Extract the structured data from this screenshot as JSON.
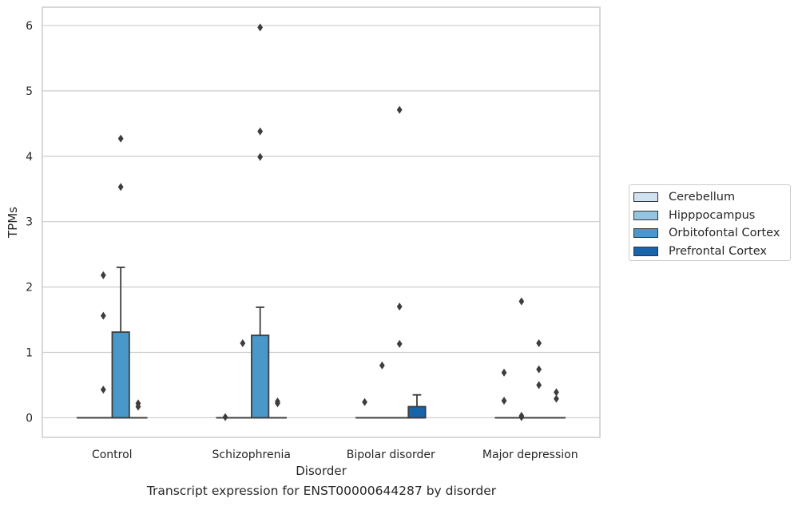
{
  "chart_data": {
    "type": "box",
    "title": "Transcript expression for ENST00000644287 by disorder",
    "xlabel": "Disorder",
    "ylabel": "TPMs",
    "ylim": [
      -0.3,
      6.28
    ],
    "yticks": [
      0,
      1,
      2,
      3,
      4,
      5,
      6
    ],
    "grid": "horizontal",
    "legend_position": "right",
    "categories": [
      "Control",
      "Schizophrenia",
      "Bipolar disorder",
      "Major depression"
    ],
    "series": [
      {
        "name": "Cerebellum",
        "color": "#d0e1f2",
        "boxes": [
          {
            "category": "Control",
            "q1": 0,
            "median": 0,
            "q3": 0,
            "whisker_low": 0,
            "whisker_high": 0,
            "outliers": []
          },
          {
            "category": "Schizophrenia",
            "q1": 0,
            "median": 0,
            "q3": 0,
            "whisker_low": 0,
            "whisker_high": 0,
            "outliers": [
              0.01
            ]
          },
          {
            "category": "Bipolar disorder",
            "q1": 0,
            "median": 0,
            "q3": 0,
            "whisker_low": 0,
            "whisker_high": 0,
            "outliers": [
              0.24
            ]
          },
          {
            "category": "Major depression",
            "q1": 0,
            "median": 0,
            "q3": 0,
            "whisker_low": 0,
            "whisker_high": 0,
            "outliers": [
              0.69,
              0.26
            ]
          }
        ]
      },
      {
        "name": "Hipppocampus",
        "color": "#94c4df",
        "boxes": [
          {
            "category": "Control",
            "q1": 0,
            "median": 0,
            "q3": 0,
            "whisker_low": 0,
            "whisker_high": 0,
            "outliers": [
              2.18,
              1.56,
              0.43
            ]
          },
          {
            "category": "Schizophrenia",
            "q1": 0,
            "median": 0,
            "q3": 0,
            "whisker_low": 0,
            "whisker_high": 0,
            "outliers": [
              1.14
            ]
          },
          {
            "category": "Bipolar disorder",
            "q1": 0,
            "median": 0,
            "q3": 0,
            "whisker_low": 0,
            "whisker_high": 0,
            "outliers": [
              0.8
            ]
          },
          {
            "category": "Major depression",
            "q1": 0,
            "median": 0,
            "q3": 0,
            "whisker_low": 0,
            "whisker_high": 0,
            "outliers": [
              1.78,
              0.03,
              0.01
            ]
          }
        ]
      },
      {
        "name": "Orbitofontal Cortex",
        "color": "#4a98c9",
        "boxes": [
          {
            "category": "Control",
            "q1": 0,
            "median": 0,
            "q3": 1.31,
            "whisker_low": 0,
            "whisker_high": 2.3,
            "outliers": [
              4.27,
              3.53
            ]
          },
          {
            "category": "Schizophrenia",
            "q1": 0,
            "median": 0,
            "q3": 1.26,
            "whisker_low": 0,
            "whisker_high": 1.69,
            "outliers": [
              5.97,
              4.38,
              3.99
            ]
          },
          {
            "category": "Bipolar disorder",
            "q1": 0,
            "median": 0,
            "q3": 0,
            "whisker_low": 0,
            "whisker_high": 0,
            "outliers": [
              4.71,
              1.7,
              1.13
            ]
          },
          {
            "category": "Major depression",
            "q1": 0,
            "median": 0,
            "q3": 0,
            "whisker_low": 0,
            "whisker_high": 0,
            "outliers": [
              1.14,
              0.74,
              0.5
            ]
          }
        ]
      },
      {
        "name": "Prefrontal Cortex",
        "color": "#1764ab",
        "boxes": [
          {
            "category": "Control",
            "q1": 0,
            "median": 0,
            "q3": 0,
            "whisker_low": 0,
            "whisker_high": 0,
            "outliers": [
              0.22,
              0.17
            ]
          },
          {
            "category": "Schizophrenia",
            "q1": 0,
            "median": 0,
            "q3": 0,
            "whisker_low": 0,
            "whisker_high": 0,
            "outliers": [
              0.25,
              0.22
            ]
          },
          {
            "category": "Bipolar disorder",
            "q1": 0,
            "median": 0,
            "q3": 0.17,
            "whisker_low": 0,
            "whisker_high": 0.35,
            "outliers": []
          },
          {
            "category": "Major depression",
            "q1": 0,
            "median": 0,
            "q3": 0,
            "whisker_low": 0,
            "whisker_high": 0,
            "outliers": [
              0.39,
              0.29
            ]
          }
        ]
      }
    ]
  }
}
